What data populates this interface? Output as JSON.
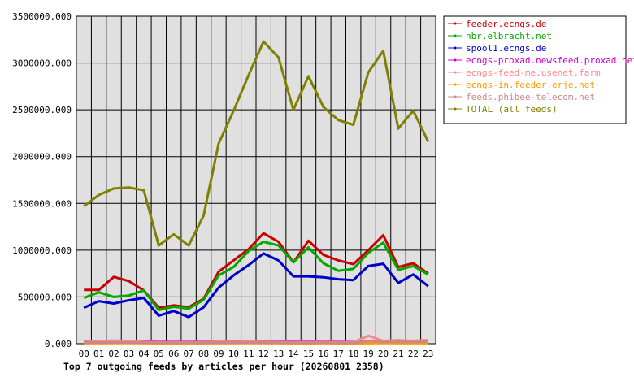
{
  "chart_data": {
    "type": "line",
    "title": "Top 7 outgoing feeds by articles per hour (20260801 2358)",
    "xlabel": "",
    "ylabel": "",
    "categories": [
      "00",
      "01",
      "02",
      "03",
      "04",
      "05",
      "06",
      "07",
      "08",
      "09",
      "10",
      "11",
      "12",
      "13",
      "14",
      "15",
      "16",
      "17",
      "18",
      "19",
      "20",
      "21",
      "22",
      "23"
    ],
    "ylim": [
      0,
      3500000
    ],
    "yticks": [
      "0.000",
      "500000.000",
      "1000000.000",
      "1500000.000",
      "2000000.000",
      "2500000.000",
      "3000000.000",
      "3500000.000"
    ],
    "grid": true,
    "legend_position": "top-right",
    "series": [
      {
        "name": "feeder.ecngs.de",
        "color": "#cc0000",
        "values": [
          575000,
          575000,
          715000,
          670000,
          570000,
          385000,
          410000,
          390000,
          480000,
          770000,
          890000,
          1010000,
          1180000,
          1090000,
          870000,
          1100000,
          950000,
          890000,
          850000,
          1000000,
          1160000,
          820000,
          860000,
          750000
        ]
      },
      {
        "name": "nbr.elbracht.net",
        "color": "#00aa00",
        "values": [
          490000,
          550000,
          500000,
          515000,
          570000,
          360000,
          395000,
          375000,
          470000,
          730000,
          820000,
          990000,
          1090000,
          1050000,
          870000,
          1030000,
          860000,
          780000,
          800000,
          970000,
          1080000,
          790000,
          830000,
          740000
        ]
      },
      {
        "name": "spool1.ecngs.de",
        "color": "#0000cc",
        "values": [
          385000,
          455000,
          430000,
          465000,
          490000,
          300000,
          350000,
          285000,
          390000,
          600000,
          730000,
          840000,
          965000,
          890000,
          720000,
          720000,
          710000,
          690000,
          680000,
          830000,
          855000,
          650000,
          740000,
          615000
        ]
      },
      {
        "name": "ecngs-proxad.newsfeed.proxad.net",
        "color": "#cc00cc",
        "values": [
          28000,
          30000,
          31000,
          30000,
          25000,
          20000,
          19000,
          20000,
          22000,
          28000,
          26000,
          29000,
          24000,
          23000,
          22000,
          20000,
          24000,
          20000,
          18000,
          20000,
          24000,
          26000,
          24000,
          22000
        ]
      },
      {
        "name": "ecngs-feed-me.usenet.farm",
        "color": "#ff8888",
        "values": [
          20000,
          22000,
          25000,
          24000,
          20000,
          15000,
          16000,
          15000,
          18000,
          22000,
          20000,
          22000,
          20000,
          18000,
          17000,
          16000,
          20000,
          16000,
          15000,
          85000,
          30000,
          38000,
          30000,
          42000
        ]
      },
      {
        "name": "ecngs-in.feeder.erje.net",
        "color": "#ff9900",
        "values": [
          5000,
          5000,
          6000,
          6000,
          5000,
          4000,
          4000,
          4000,
          4000,
          5000,
          5000,
          6000,
          5000,
          5000,
          4000,
          4000,
          5000,
          4000,
          4000,
          5000,
          6000,
          5000,
          5000,
          5000
        ]
      },
      {
        "name": "feeds.phibee-telecom.net",
        "color": "#cc8888",
        "values": [
          12000,
          13000,
          14000,
          14000,
          12000,
          10000,
          10000,
          10000,
          11000,
          13000,
          12000,
          13000,
          12000,
          11000,
          10000,
          10000,
          12000,
          10000,
          9000,
          30000,
          18000,
          22000,
          18000,
          25000
        ]
      },
      {
        "name": "TOTAL (all feeds)",
        "color": "#808000",
        "values": [
          1470000,
          1590000,
          1660000,
          1670000,
          1640000,
          1050000,
          1170000,
          1050000,
          1370000,
          2140000,
          2490000,
          2870000,
          3230000,
          3060000,
          2500000,
          2860000,
          2530000,
          2390000,
          2340000,
          2900000,
          3130000,
          2300000,
          2490000,
          2160000
        ]
      }
    ]
  }
}
